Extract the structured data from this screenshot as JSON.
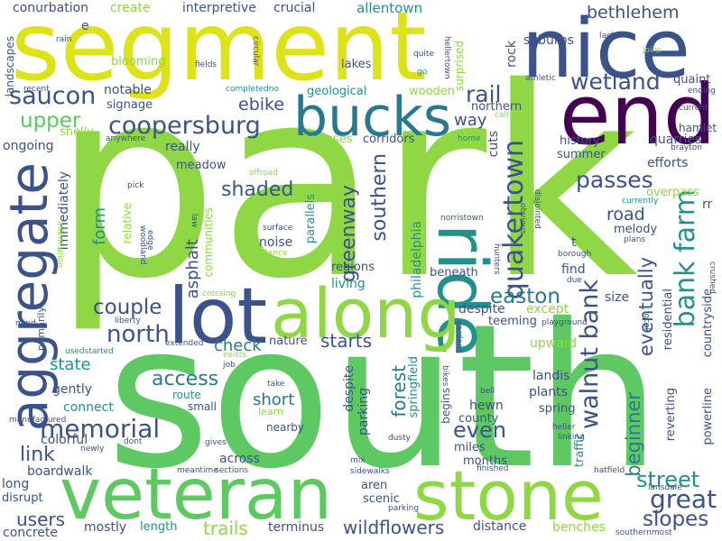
{
  "palette": {
    "lime": "#8fd744",
    "green": "#5ec962",
    "teal": "#21918c",
    "blue": "#3b528b",
    "purple": "#440154",
    "yellow": "#dde318",
    "cyan": "#2a788e"
  },
  "words": {
    "park": "park",
    "south": "south",
    "segment": "segment",
    "nice": "nice",
    "end": "end",
    "veteran": "veteran",
    "stone": "stone",
    "ride": "ride",
    "lot": "lot",
    "along": "along",
    "aggregate": "aggregate",
    "bucks": "bucks",
    "saucon": "saucon",
    "coopersburg": "coopersburg",
    "upper": "upper",
    "bank_farm": "bank farm",
    "walnut_bank": "walnut bank",
    "quakertown": "quakertown",
    "memorial": "memorial",
    "wetland": "wetland",
    "rail": "rail",
    "north": "north",
    "couple": "couple",
    "easton": "easton",
    "passes": "passes",
    "shaded": "shaded",
    "greenway": "greenway",
    "southern": "southern",
    "great": "great",
    "street": "street",
    "slopes": "slopes",
    "wildflowers": "wildflowers",
    "trails": "trails",
    "access": "access",
    "link": "link",
    "forest": "forest",
    "even": "even",
    "eventually": "eventually",
    "beginner": "beginner",
    "starts": "starts",
    "users": "users",
    "state": "state",
    "road": "road",
    "way": "way",
    "bethlehem": "bethlehem",
    "allentown": "allentown",
    "conurbation": "conurbation",
    "create": "create",
    "interpretive": "interpretive",
    "crucial": "crucial",
    "ebike": "ebike",
    "cuts": "cuts",
    "rock": "rock",
    "suburbs": "suburbs",
    "form": "form",
    "asphalt": "asphalt",
    "immediately": "immediately",
    "philadelphia": "philadelphia",
    "springfield": "springfield",
    "parking": "parking",
    "despite": "despite",
    "check": "check",
    "short": "short",
    "connect": "connect",
    "gently": "gently",
    "colorful": "colorful",
    "boardwalk": "boardwalk",
    "long": "long",
    "disrupt": "disrupt",
    "concrete": "concrete",
    "mostly": "mostly",
    "length": "length",
    "terminus": "terminus",
    "distance": "distance",
    "benches": "benches",
    "across": "across",
    "hewn": "hewn",
    "county": "county",
    "miles": "miles",
    "months": "months",
    "aren": "aren",
    "scenic": "scenic",
    "upward": "upward",
    "landis": "landis",
    "plants": "plants",
    "spring": "spring",
    "powerline": "powerline",
    "countryside": "countryside",
    "reverting": "reverting",
    "residential": "residential",
    "traffic": "traffic",
    "size": "size",
    "find": "find",
    "except": "except",
    "teeming": "teeming",
    "quarries": "quarries",
    "efforts": "efforts",
    "history": "history",
    "summer": "summer",
    "hamlet": "hamlet",
    "quaint": "quaint",
    "overpass": "overpass",
    "melody": "melody",
    "rr": "rr",
    "noise": "noise",
    "regions": "regions",
    "living": "living",
    "nature": "nature",
    "beneath": "beneath",
    "parallels": "parallels",
    "communities": "communities",
    "relative": "relative",
    "meadow": "meadow",
    "really": "really",
    "ongoing": "ongoing",
    "shelly": "shelly",
    "signage": "signage",
    "notable": "notable",
    "blooming": "blooming",
    "geological": "geological",
    "wooden": "wooden",
    "crosses": "crosses",
    "corridors": "corridors",
    "northern": "northern",
    "surprised": "surprised",
    "lakes": "lakes",
    "landscapes": "landscapes",
    "recent": "recent",
    "rain": "rain",
    "e": "e",
    "fields": "fields",
    "circular": "circular",
    "completedno": "completedno",
    "anywhere": "anywhere",
    "home": "home",
    "call": "call",
    "quite": "quite",
    "go": "go",
    "hellertown": "hellertown",
    "athletic": "athletic",
    "lack": "lack",
    "joins": "joins",
    "ending": "ending",
    "current": "current",
    "brayton": "brayton",
    "crushed": "crushed",
    "borough": "borough",
    "due": "due",
    "plans": "plans",
    "currently": "currently",
    "t": "t",
    "disjointed": "disjointed",
    "obvious": "obvious",
    "norristown": "norristown",
    "hunters": "hunters",
    "gardens": "gardens",
    "playground": "playground",
    "local": "local",
    "bikes": "bikes",
    "bell": "bell",
    "heller": "heller",
    "linking": "linking",
    "dusty": "dusty",
    "hatfield": "hatfield",
    "lansdale": "lansdale",
    "southernmost": "southernmost",
    "finished": "finished",
    "sidewalks": "sidewalks",
    "mix": "mix",
    "parking_small": "parking",
    "sections": "sections",
    "meantime": "meantime",
    "gives": "gives",
    "dont": "dont",
    "newly": "newly",
    "manufactured": "manufactured",
    "job": "job",
    "exists": "exists",
    "extended": "extended",
    "usedstarted": "usedstarted",
    "mind": "mind",
    "primarily": "primarily",
    "liberty": "liberty",
    "crossing": "crossing",
    "ordance": "ordance",
    "surface": "surface",
    "offroad": "offroad",
    "law": "law",
    "woodland": "woodland",
    "edge": "edge",
    "pick": "pick",
    "information": "information",
    "crushed_mid": "crushed",
    "take": "take",
    "learn": "learn",
    "nearby": "nearby",
    "route": "route",
    "small": "small",
    "begins": "begins",
    "mix_mid": "mix"
  }
}
